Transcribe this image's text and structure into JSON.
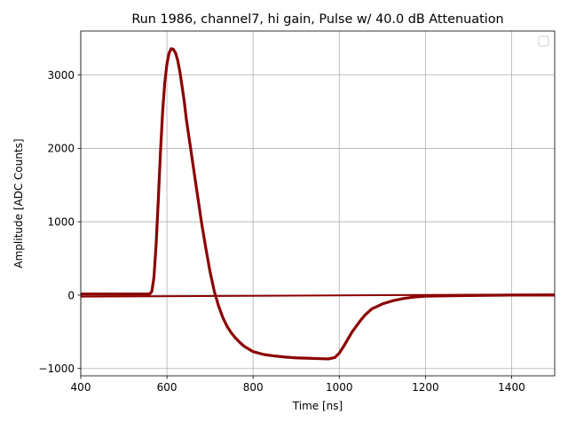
{
  "chart_data": {
    "type": "line",
    "title": "Run 1986, channel7, hi gain, Pulse w/ 40.0 dB Attenuation",
    "xlabel": "Time [ns]",
    "ylabel": "Amplitude [ADC Counts]",
    "xlim": [
      400,
      1500
    ],
    "ylim": [
      -1100,
      3600
    ],
    "x_ticks": [
      400,
      600,
      800,
      1000,
      1200,
      1400
    ],
    "y_ticks": [
      -1000,
      0,
      1000,
      2000,
      3000
    ],
    "x_tick_labels": [
      "400",
      "600",
      "800",
      "1000",
      "1200",
      "1400"
    ],
    "y_tick_labels": [
      "−1000",
      "0",
      "1000",
      "2000",
      "3000"
    ],
    "grid": true,
    "legend": "top-right (empty)",
    "line_color": "#8b0000",
    "series": [
      {
        "x": [
          400,
          500,
          560,
          565,
          570,
          575,
          580,
          585,
          590,
          595,
          600,
          605,
          610,
          615,
          620,
          625,
          630,
          635,
          640,
          645,
          650,
          660,
          670,
          680,
          690,
          700,
          710,
          720,
          730,
          740,
          750,
          760,
          770,
          780,
          800,
          825,
          850,
          875,
          900,
          925,
          950,
          975,
          990,
          1000,
          1010,
          1020,
          1030,
          1040,
          1050,
          1060,
          1075,
          1100,
          1125,
          1150,
          1175,
          1200,
          1300,
          1400,
          1500
        ],
        "y": [
          15,
          15,
          15,
          50,
          250,
          700,
          1300,
          1950,
          2500,
          2900,
          3150,
          3300,
          3360,
          3350,
          3300,
          3200,
          3050,
          2850,
          2650,
          2400,
          2200,
          1800,
          1400,
          1000,
          650,
          320,
          50,
          -150,
          -310,
          -430,
          -520,
          -590,
          -650,
          -700,
          -770,
          -810,
          -830,
          -845,
          -855,
          -860,
          -865,
          -870,
          -850,
          -790,
          -700,
          -600,
          -500,
          -420,
          -340,
          -270,
          -190,
          -120,
          -75,
          -45,
          -25,
          -15,
          -5,
          0,
          0
        ]
      },
      {
        "x": [
          400,
          1500
        ],
        "y": [
          -20,
          10
        ]
      }
    ]
  }
}
